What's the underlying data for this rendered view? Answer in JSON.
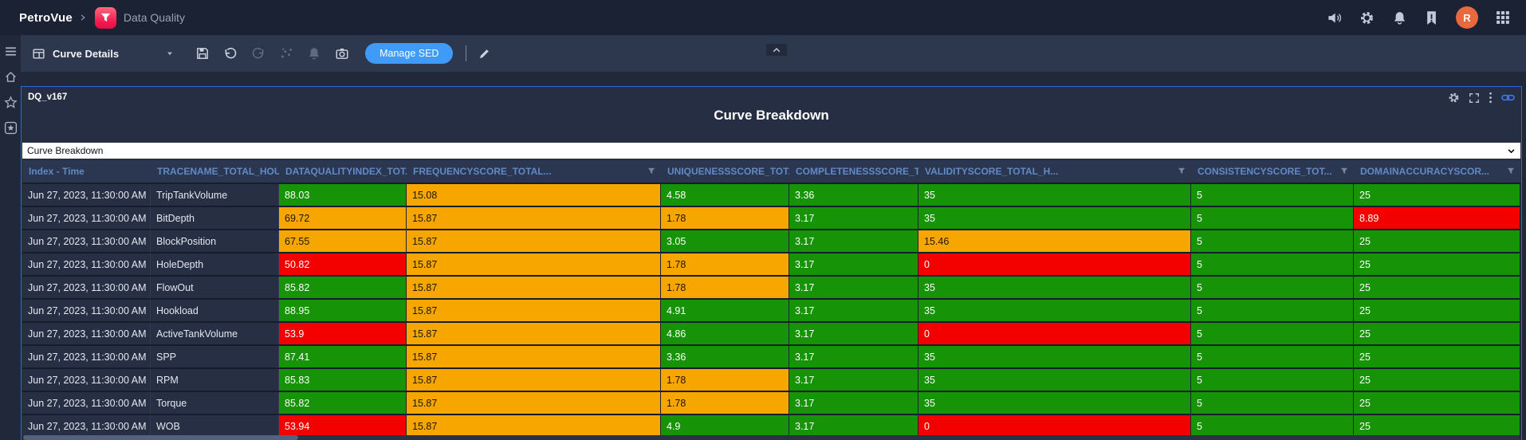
{
  "topbar": {
    "brand": "PetroVue",
    "app_name": "Data Quality",
    "avatar_initial": "R",
    "icons": [
      "volume-icon",
      "gear-icon",
      "bell-icon",
      "bookmark-alert-icon",
      "avatar",
      "apps-grid-icon"
    ]
  },
  "sidebar": {
    "icons": [
      "menu-icon",
      "home-icon",
      "star-icon",
      "starred-box-icon"
    ]
  },
  "toolbar": {
    "view_label": "Curve Details",
    "manage_sed_label": "Manage SED",
    "icons": [
      "table-view-icon",
      "caret-down-icon",
      "save-icon",
      "undo-icon",
      "redo-icon",
      "scatter-icon",
      "bell-icon",
      "camera-icon",
      "edit-icon",
      "collapse-up-icon"
    ]
  },
  "panel": {
    "chip": "DQ_v167",
    "title": "Curve Breakdown",
    "selector_value": "Curve Breakdown",
    "icons": [
      "gear-icon",
      "expand-icon",
      "kebab-icon",
      "link-icon"
    ]
  },
  "colors": {
    "cell": {
      "G": "#169306",
      "O": "#f7a600",
      "R": "#f30000"
    },
    "cell_text": {
      "G": "#ffffff",
      "O": "#1d1600",
      "R": "#ffffff"
    },
    "accent_blue": "#3f9bf7",
    "header_text": "#6189c4",
    "panel_border": "#2f66db",
    "avatar_bg": "#e8693e"
  },
  "table": {
    "columns": [
      {
        "label": "Index - Time",
        "filter": false
      },
      {
        "label": "TRACENAME_TOTAL_HOU...",
        "filter": true
      },
      {
        "label": "DATAQUALITYINDEX_TOT...",
        "filter": true
      },
      {
        "label": "FREQUENCYSCORE_TOTAL...",
        "filter": true
      },
      {
        "label": "UNIQUENESSSCORE_TOTA...",
        "filter": true
      },
      {
        "label": "COMPLETENESSSCORE_TO...",
        "filter": true
      },
      {
        "label": "VALIDITYSCORE_TOTAL_H...",
        "filter": true
      },
      {
        "label": "CONSISTENCYSCORE_TOT...",
        "filter": true
      },
      {
        "label": "DOMAINACCURACYSCOR...",
        "filter": true
      }
    ],
    "rows": [
      {
        "time": "Jun 27, 2023, 11:30:00 AM",
        "trace": "TripTankVolume",
        "cells": [
          [
            "88.03",
            "G"
          ],
          [
            "15.08",
            "O"
          ],
          [
            "4.58",
            "G"
          ],
          [
            "3.36",
            "G"
          ],
          [
            "35",
            "G"
          ],
          [
            "5",
            "G"
          ],
          [
            "25",
            "G"
          ]
        ]
      },
      {
        "time": "Jun 27, 2023, 11:30:00 AM",
        "trace": "BitDepth",
        "cells": [
          [
            "69.72",
            "O"
          ],
          [
            "15.87",
            "O"
          ],
          [
            "1.78",
            "O"
          ],
          [
            "3.17",
            "G"
          ],
          [
            "35",
            "G"
          ],
          [
            "5",
            "G"
          ],
          [
            "8.89",
            "R"
          ]
        ]
      },
      {
        "time": "Jun 27, 2023, 11:30:00 AM",
        "trace": "BlockPosition",
        "cells": [
          [
            "67.55",
            "O"
          ],
          [
            "15.87",
            "O"
          ],
          [
            "3.05",
            "G"
          ],
          [
            "3.17",
            "G"
          ],
          [
            "15.46",
            "O"
          ],
          [
            "5",
            "G"
          ],
          [
            "25",
            "G"
          ]
        ]
      },
      {
        "time": "Jun 27, 2023, 11:30:00 AM",
        "trace": "HoleDepth",
        "cells": [
          [
            "50.82",
            "R"
          ],
          [
            "15.87",
            "O"
          ],
          [
            "1.78",
            "O"
          ],
          [
            "3.17",
            "G"
          ],
          [
            "0",
            "R"
          ],
          [
            "5",
            "G"
          ],
          [
            "25",
            "G"
          ]
        ]
      },
      {
        "time": "Jun 27, 2023, 11:30:00 AM",
        "trace": "FlowOut",
        "cells": [
          [
            "85.82",
            "G"
          ],
          [
            "15.87",
            "O"
          ],
          [
            "1.78",
            "O"
          ],
          [
            "3.17",
            "G"
          ],
          [
            "35",
            "G"
          ],
          [
            "5",
            "G"
          ],
          [
            "25",
            "G"
          ]
        ]
      },
      {
        "time": "Jun 27, 2023, 11:30:00 AM",
        "trace": "Hookload",
        "cells": [
          [
            "88.95",
            "G"
          ],
          [
            "15.87",
            "O"
          ],
          [
            "4.91",
            "G"
          ],
          [
            "3.17",
            "G"
          ],
          [
            "35",
            "G"
          ],
          [
            "5",
            "G"
          ],
          [
            "25",
            "G"
          ]
        ]
      },
      {
        "time": "Jun 27, 2023, 11:30:00 AM",
        "trace": "ActiveTankVolume",
        "cells": [
          [
            "53.9",
            "R"
          ],
          [
            "15.87",
            "O"
          ],
          [
            "4.86",
            "G"
          ],
          [
            "3.17",
            "G"
          ],
          [
            "0",
            "R"
          ],
          [
            "5",
            "G"
          ],
          [
            "25",
            "G"
          ]
        ]
      },
      {
        "time": "Jun 27, 2023, 11:30:00 AM",
        "trace": "SPP",
        "cells": [
          [
            "87.41",
            "G"
          ],
          [
            "15.87",
            "O"
          ],
          [
            "3.36",
            "G"
          ],
          [
            "3.17",
            "G"
          ],
          [
            "35",
            "G"
          ],
          [
            "5",
            "G"
          ],
          [
            "25",
            "G"
          ]
        ]
      },
      {
        "time": "Jun 27, 2023, 11:30:00 AM",
        "trace": "RPM",
        "cells": [
          [
            "85.83",
            "G"
          ],
          [
            "15.87",
            "O"
          ],
          [
            "1.78",
            "O"
          ],
          [
            "3.17",
            "G"
          ],
          [
            "35",
            "G"
          ],
          [
            "5",
            "G"
          ],
          [
            "25",
            "G"
          ]
        ]
      },
      {
        "time": "Jun 27, 2023, 11:30:00 AM",
        "trace": "Torque",
        "cells": [
          [
            "85.82",
            "G"
          ],
          [
            "15.87",
            "O"
          ],
          [
            "1.78",
            "O"
          ],
          [
            "3.17",
            "G"
          ],
          [
            "35",
            "G"
          ],
          [
            "5",
            "G"
          ],
          [
            "25",
            "G"
          ]
        ]
      },
      {
        "time": "Jun 27, 2023, 11:30:00 AM",
        "trace": "WOB",
        "cells": [
          [
            "53.94",
            "R"
          ],
          [
            "15.87",
            "O"
          ],
          [
            "4.9",
            "G"
          ],
          [
            "3.17",
            "G"
          ],
          [
            "0",
            "R"
          ],
          [
            "5",
            "G"
          ],
          [
            "25",
            "G"
          ]
        ]
      }
    ]
  }
}
